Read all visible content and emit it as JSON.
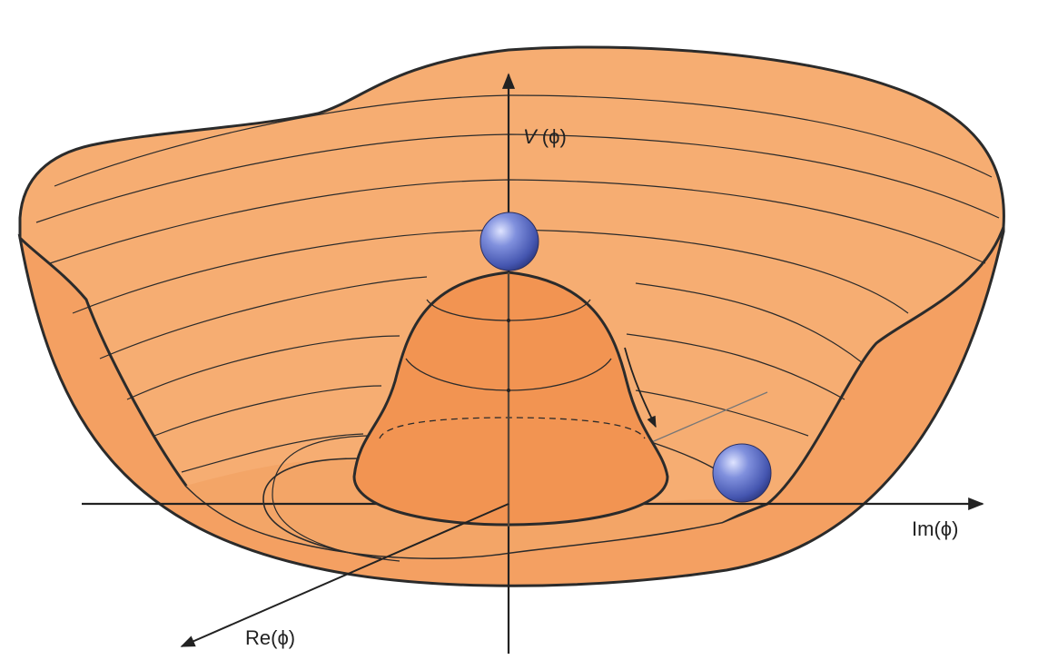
{
  "labels": {
    "v_axis_name": "V",
    "v_axis_arg": " (ϕ)",
    "im_axis": "Im(ϕ)",
    "re_axis": "Re(ϕ)"
  },
  "colors": {
    "surface_light": "#f6ad72",
    "surface_mid": "#f4a062",
    "surface_dark": "#f29452",
    "outline": "#2b2b2b",
    "ball": "#5566bb"
  },
  "objects": {
    "top_ball": "ball-on-hump",
    "bottom_ball": "ball-in-trough",
    "motion": "roll-down-arrow"
  }
}
